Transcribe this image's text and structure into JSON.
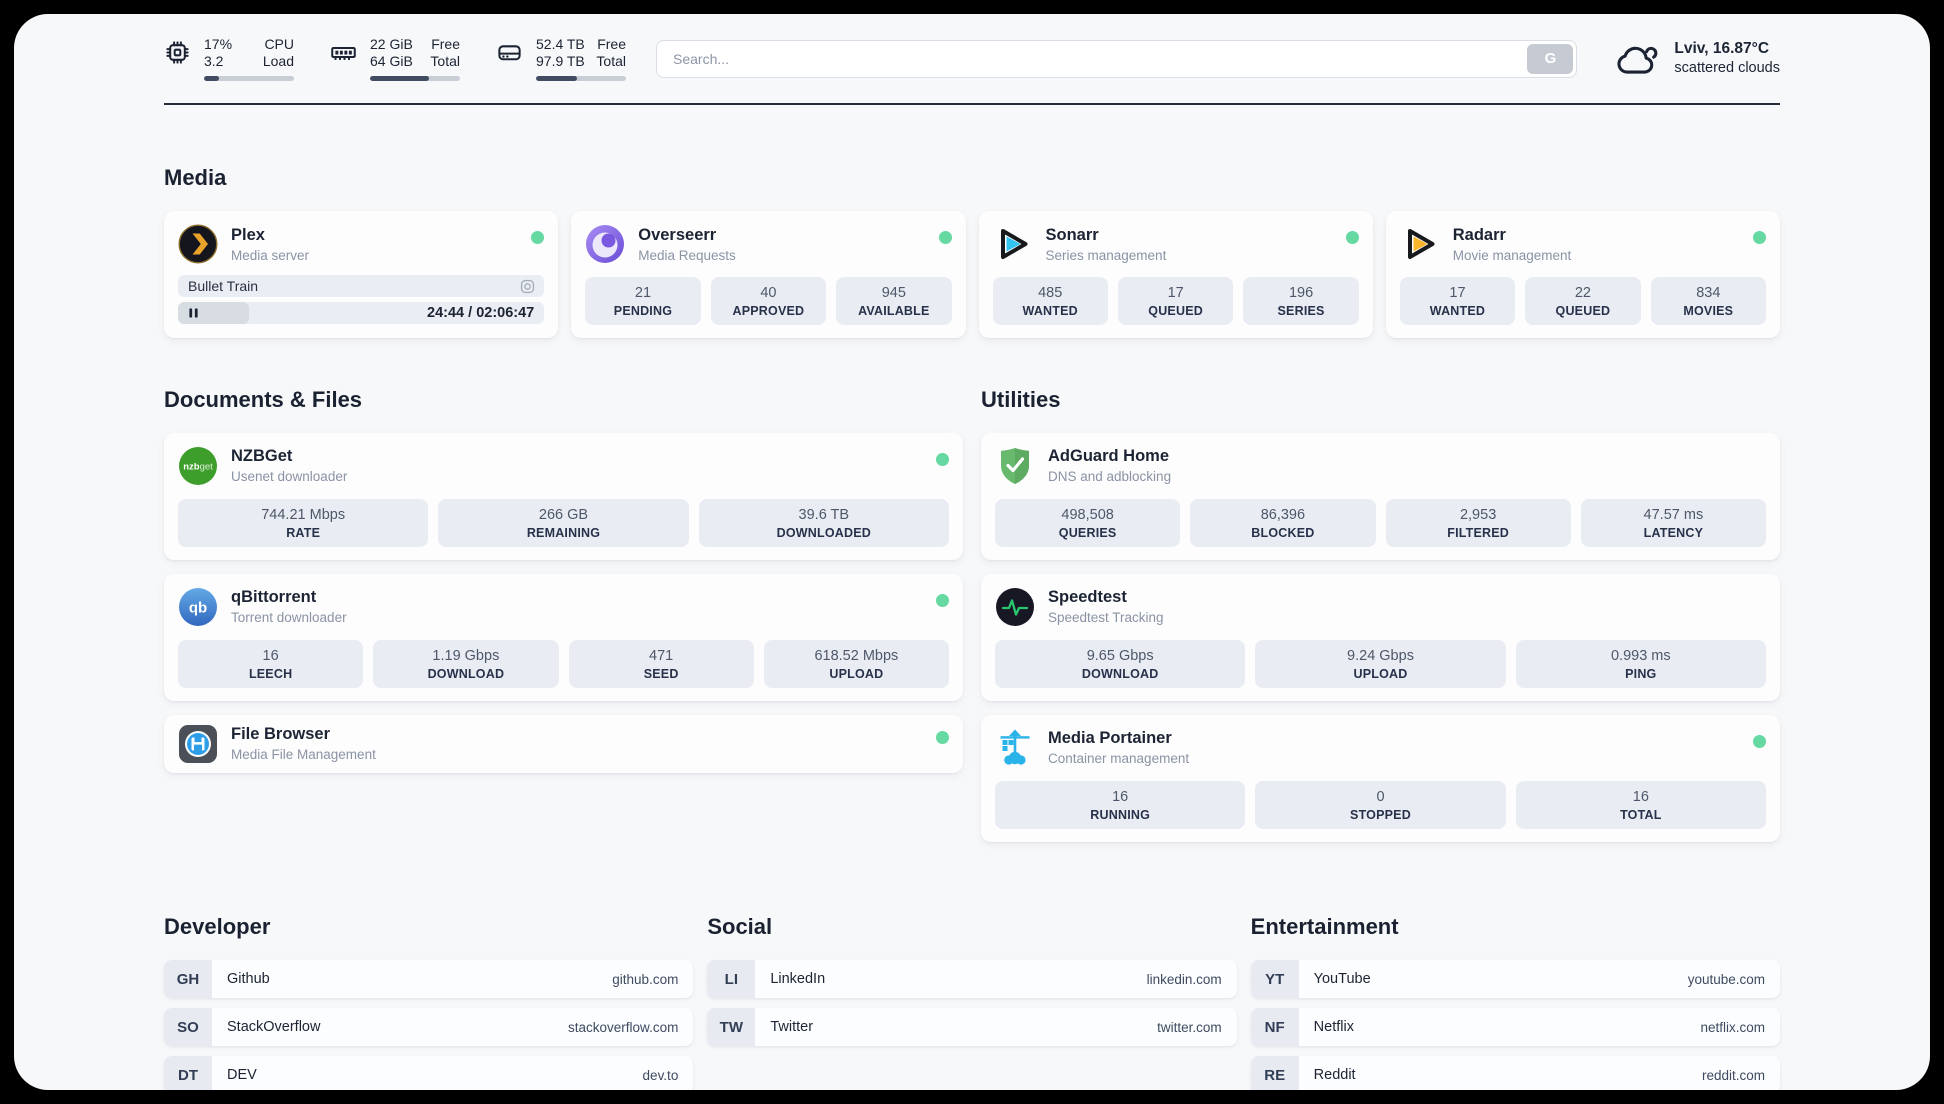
{
  "topbar": {
    "cpu": {
      "values": [
        "17%",
        "3.2"
      ],
      "labels": [
        "CPU",
        "Load"
      ],
      "progress_percent": 17
    },
    "memory": {
      "values": [
        "22 GiB",
        "64 GiB"
      ],
      "labels": [
        "Free",
        "Total"
      ],
      "progress_percent": 66
    },
    "disk": {
      "values": [
        "52.4 TB",
        "97.9 TB"
      ],
      "labels": [
        "Free",
        "Total"
      ],
      "progress_percent": 46
    },
    "search": {
      "placeholder": "Search...",
      "button_label": "G"
    },
    "weather": {
      "location_temp": "Lviv, 16.87°C",
      "condition": "scattered clouds"
    }
  },
  "media": {
    "heading": "Media",
    "plex": {
      "title": "Plex",
      "subtitle": "Media server",
      "now_playing": "Bullet Train",
      "time": "24:44 / 02:06:47",
      "progress_percent": 19.5
    },
    "overseerr": {
      "title": "Overseerr",
      "subtitle": "Media Requests",
      "stats": [
        {
          "value": "21",
          "label": "PENDING"
        },
        {
          "value": "40",
          "label": "APPROVED"
        },
        {
          "value": "945",
          "label": "AVAILABLE"
        }
      ]
    },
    "sonarr": {
      "title": "Sonarr",
      "subtitle": "Series management",
      "stats": [
        {
          "value": "485",
          "label": "WANTED"
        },
        {
          "value": "17",
          "label": "QUEUED"
        },
        {
          "value": "196",
          "label": "SERIES"
        }
      ]
    },
    "radarr": {
      "title": "Radarr",
      "subtitle": "Movie management",
      "stats": [
        {
          "value": "17",
          "label": "WANTED"
        },
        {
          "value": "22",
          "label": "QUEUED"
        },
        {
          "value": "834",
          "label": "MOVIES"
        }
      ]
    }
  },
  "documents": {
    "heading": "Documents & Files",
    "nzbget": {
      "title": "NZBGet",
      "subtitle": "Usenet downloader",
      "icon_text_1": "nzb",
      "icon_text_2": "get",
      "stats": [
        {
          "value": "744.21 Mbps",
          "label": "RATE"
        },
        {
          "value": "266 GB",
          "label": "REMAINING"
        },
        {
          "value": "39.6 TB",
          "label": "DOWNLOADED"
        }
      ]
    },
    "qbittorrent": {
      "title": "qBittorrent",
      "subtitle": "Torrent downloader",
      "icon_text": "qb",
      "stats": [
        {
          "value": "16",
          "label": "LEECH"
        },
        {
          "value": "1.19 Gbps",
          "label": "DOWNLOAD"
        },
        {
          "value": "471",
          "label": "SEED"
        },
        {
          "value": "618.52 Mbps",
          "label": "UPLOAD"
        }
      ]
    },
    "filebrowser": {
      "title": "File Browser",
      "subtitle": "Media File Management"
    }
  },
  "utilities": {
    "heading": "Utilities",
    "adguard": {
      "title": "AdGuard Home",
      "subtitle": "DNS and adblocking",
      "stats": [
        {
          "value": "498,508",
          "label": "QUERIES"
        },
        {
          "value": "86,396",
          "label": "BLOCKED"
        },
        {
          "value": "2,953",
          "label": "FILTERED"
        },
        {
          "value": "47.57 ms",
          "label": "LATENCY"
        }
      ]
    },
    "speedtest": {
      "title": "Speedtest",
      "subtitle": "Speedtest Tracking",
      "stats": [
        {
          "value": "9.65 Gbps",
          "label": "DOWNLOAD"
        },
        {
          "value": "9.24 Gbps",
          "label": "UPLOAD"
        },
        {
          "value": "0.993 ms",
          "label": "PING"
        }
      ]
    },
    "portainer": {
      "title": "Media Portainer",
      "subtitle": "Container management",
      "stats": [
        {
          "value": "16",
          "label": "RUNNING"
        },
        {
          "value": "0",
          "label": "STOPPED"
        },
        {
          "value": "16",
          "label": "TOTAL"
        }
      ]
    }
  },
  "bookmarks": {
    "developer": {
      "heading": "Developer",
      "items": [
        {
          "abbr": "GH",
          "name": "Github",
          "url": "github.com"
        },
        {
          "abbr": "SO",
          "name": "StackOverflow",
          "url": "stackoverflow.com"
        },
        {
          "abbr": "DT",
          "name": "DEV",
          "url": "dev.to"
        }
      ]
    },
    "social": {
      "heading": "Social",
      "items": [
        {
          "abbr": "LI",
          "name": "LinkedIn",
          "url": "linkedin.com"
        },
        {
          "abbr": "TW",
          "name": "Twitter",
          "url": "twitter.com"
        }
      ]
    },
    "entertainment": {
      "heading": "Entertainment",
      "items": [
        {
          "abbr": "YT",
          "name": "YouTube",
          "url": "youtube.com"
        },
        {
          "abbr": "NF",
          "name": "Netflix",
          "url": "netflix.com"
        },
        {
          "abbr": "RE",
          "name": "Reddit",
          "url": "reddit.com"
        }
      ]
    }
  },
  "colors": {
    "status_online": "#65d9a1",
    "accent_dark": "#1c2433"
  }
}
